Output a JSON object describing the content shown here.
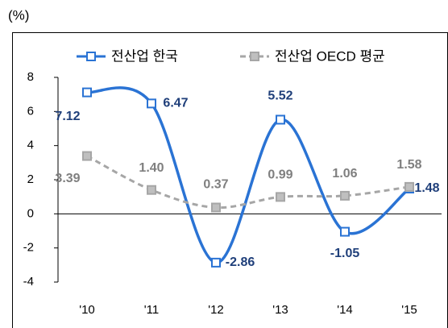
{
  "chart_data": {
    "type": "line",
    "unit_label": "(%)",
    "categories": [
      "'10",
      "'11",
      "'12",
      "'13",
      "'14",
      "'15"
    ],
    "series": [
      {
        "name": "전산업 한국",
        "color": "#2a73d4",
        "values": [
          7.12,
          6.47,
          -2.86,
          5.52,
          -1.05,
          1.48
        ],
        "value_labels": [
          "7.12",
          "6.47",
          "-2.86",
          "5.52",
          "-1.05",
          "1.48"
        ]
      },
      {
        "name": "전산업 OECD 평균",
        "color": "#a6a6a6",
        "values": [
          3.39,
          1.4,
          0.37,
          0.99,
          1.06,
          1.58
        ],
        "value_labels": [
          "3.39",
          "1.40",
          "0.37",
          "0.99",
          "1.06",
          "1.58"
        ]
      }
    ],
    "ylim": [
      -4,
      8
    ],
    "yticks": [
      -4,
      -2,
      0,
      2,
      4,
      6,
      8
    ],
    "grid": false
  }
}
